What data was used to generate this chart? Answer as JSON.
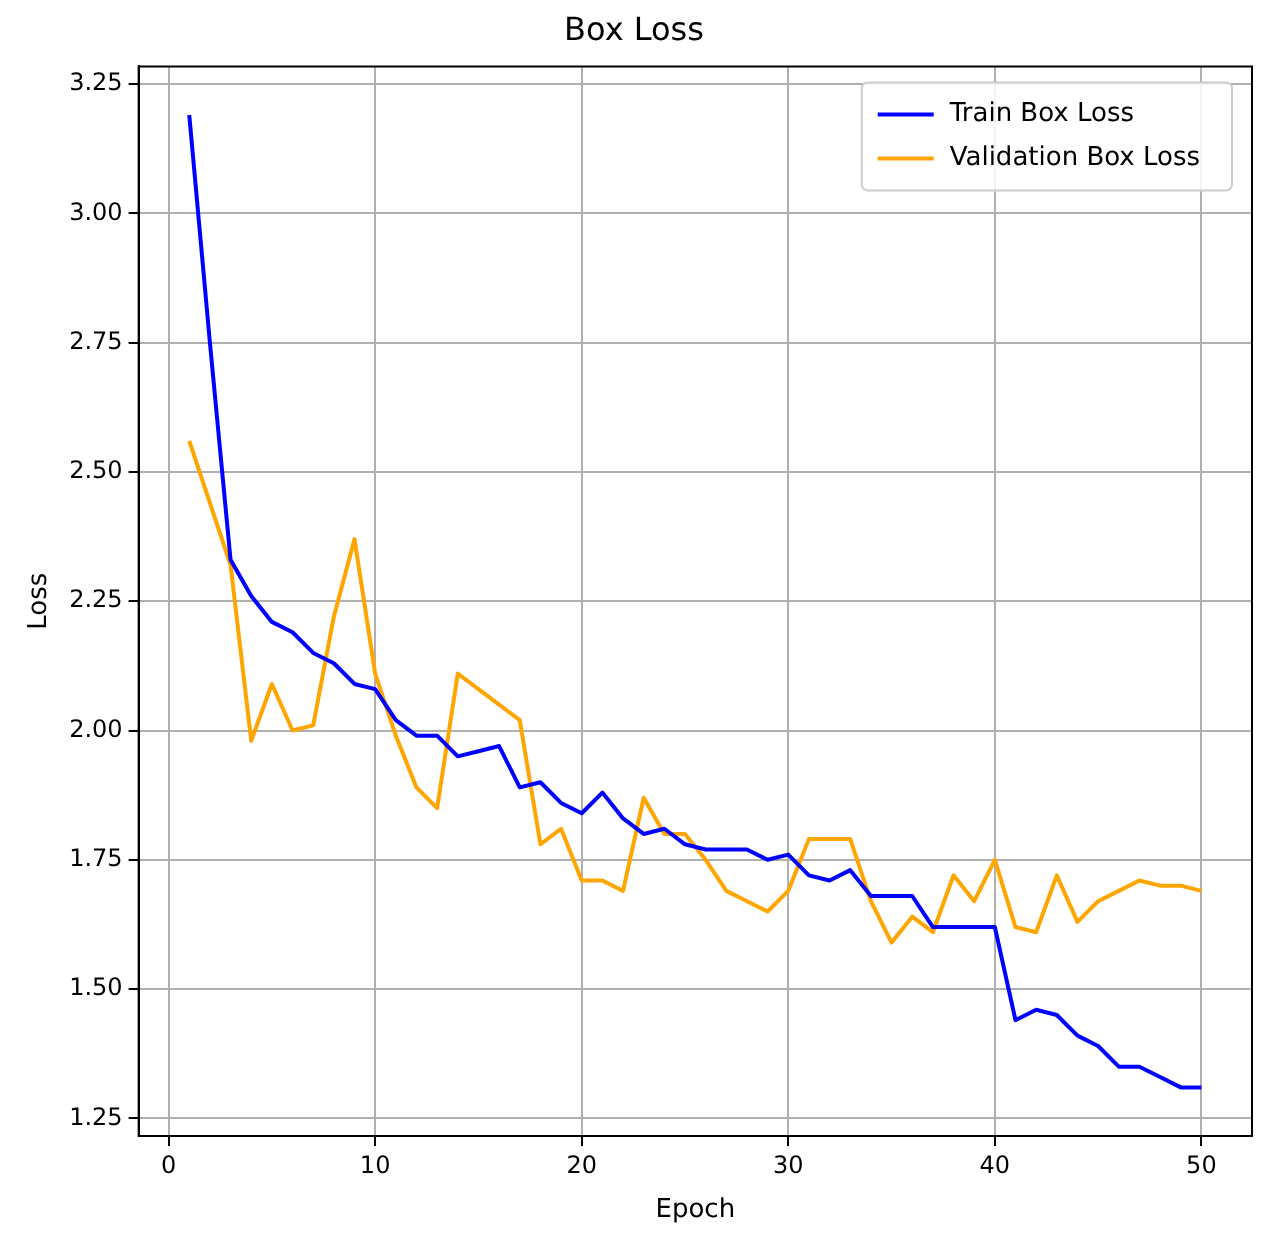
{
  "chart_data": {
    "type": "line",
    "title": "Box Loss",
    "xlabel": "Epoch",
    "ylabel": "Loss",
    "x": [
      1,
      2,
      3,
      4,
      5,
      6,
      7,
      8,
      9,
      10,
      11,
      12,
      13,
      14,
      15,
      16,
      17,
      18,
      19,
      20,
      21,
      22,
      23,
      24,
      25,
      26,
      27,
      28,
      29,
      30,
      31,
      32,
      33,
      34,
      35,
      36,
      37,
      38,
      39,
      40,
      41,
      42,
      43,
      44,
      45,
      46,
      47,
      48,
      49,
      50
    ],
    "series": [
      {
        "name": "Train Box Loss",
        "color": "#0000ff",
        "values": [
          3.19,
          2.75,
          2.33,
          2.26,
          2.21,
          2.19,
          2.15,
          2.13,
          2.09,
          2.08,
          2.02,
          1.99,
          1.99,
          1.95,
          1.96,
          1.97,
          1.89,
          1.9,
          1.86,
          1.84,
          1.88,
          1.83,
          1.8,
          1.81,
          1.78,
          1.77,
          1.77,
          1.77,
          1.75,
          1.76,
          1.72,
          1.71,
          1.73,
          1.68,
          1.68,
          1.68,
          1.62,
          1.62,
          1.62,
          1.62,
          1.44,
          1.46,
          1.45,
          1.41,
          1.39,
          1.35,
          1.35,
          1.33,
          1.31,
          1.31
        ]
      },
      {
        "name": "Validation Box Loss",
        "color": "#ffa500",
        "values": [
          2.56,
          2.44,
          2.32,
          1.98,
          2.09,
          2.0,
          2.01,
          2.22,
          2.37,
          2.11,
          1.99,
          1.89,
          1.85,
          2.11,
          2.08,
          2.05,
          2.02,
          1.78,
          1.81,
          1.71,
          1.71,
          1.69,
          1.87,
          1.8,
          1.8,
          1.75,
          1.69,
          1.67,
          1.65,
          1.69,
          1.79,
          1.79,
          1.79,
          1.67,
          1.59,
          1.64,
          1.61,
          1.72,
          1.67,
          1.75,
          1.62,
          1.61,
          1.72,
          1.63,
          1.67,
          1.69,
          1.71,
          1.7,
          1.7,
          1.69
        ]
      }
    ],
    "xlim": [
      -1.45,
      52.45
    ],
    "ylim": [
      1.216,
      3.284
    ],
    "xticks": [
      0,
      10,
      20,
      30,
      40,
      50
    ],
    "yticks": [
      {
        "value": 1.25,
        "label": "1.25"
      },
      {
        "value": 1.5,
        "label": "1.50"
      },
      {
        "value": 1.75,
        "label": "1.75"
      },
      {
        "value": 2,
        "label": "2.00"
      },
      {
        "value": 2.25,
        "label": "2.25"
      },
      {
        "value": 2.5,
        "label": "2.50"
      },
      {
        "value": 2.75,
        "label": "2.75"
      },
      {
        "value": 3,
        "label": "3.00"
      },
      {
        "value": 3.25,
        "label": "3.25"
      }
    ],
    "grid": true,
    "legend": "top right",
    "marker": "none",
    "line_style": "solid"
  }
}
